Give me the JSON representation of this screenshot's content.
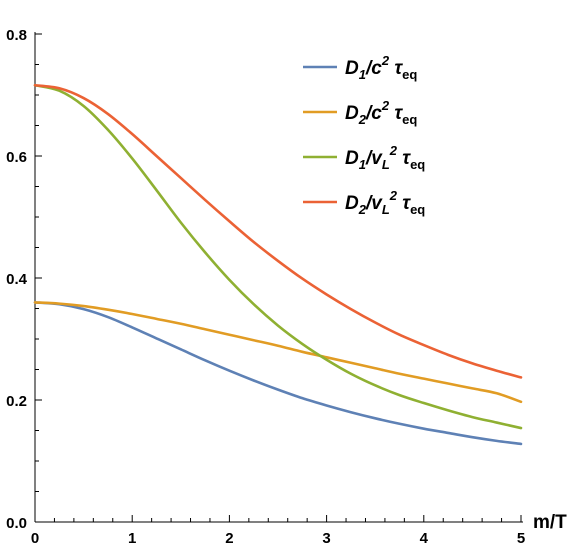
{
  "chart_data": {
    "type": "line",
    "xlabel": "m/T",
    "ylabel": "",
    "xlim": [
      0,
      5
    ],
    "ylim": [
      0,
      0.8
    ],
    "x_ticks": [
      0,
      1,
      2,
      3,
      4,
      5
    ],
    "y_ticks": [
      0.0,
      0.2,
      0.4,
      0.6,
      0.8
    ],
    "x_tick_labels": [
      "0",
      "1",
      "2",
      "3",
      "4",
      "5"
    ],
    "y_tick_labels": [
      "0.0",
      "0.2",
      "0.4",
      "0.6",
      "0.8"
    ],
    "grid": false,
    "legend_position": "top-right",
    "x": [
      0,
      0.25,
      0.5,
      0.75,
      1.0,
      1.25,
      1.5,
      1.75,
      2.0,
      2.25,
      2.5,
      2.75,
      3.0,
      3.25,
      3.5,
      3.75,
      4.0,
      4.25,
      4.5,
      4.75,
      5.0
    ],
    "series": [
      {
        "name": "D1/c2 τeq",
        "legend": {
          "main": "D",
          "sub": "1",
          "mid": "/c",
          "sup": "2",
          "tail": " τ",
          "tail_sub": "eq"
        },
        "color": "#5e81b5",
        "values": [
          0.36,
          0.357,
          0.349,
          0.336,
          0.319,
          0.301,
          0.283,
          0.265,
          0.248,
          0.232,
          0.217,
          0.203,
          0.191,
          0.18,
          0.17,
          0.161,
          0.153,
          0.146,
          0.139,
          0.133,
          0.128
        ]
      },
      {
        "name": "D2/c2 τeq",
        "legend": {
          "main": "D",
          "sub": "2",
          "mid": "/c",
          "sup": "2",
          "tail": " τ",
          "tail_sub": "eq"
        },
        "color": "#e19c24",
        "values": [
          0.36,
          0.358,
          0.354,
          0.348,
          0.341,
          0.333,
          0.325,
          0.316,
          0.307,
          0.298,
          0.289,
          0.279,
          0.27,
          0.261,
          0.252,
          0.243,
          0.235,
          0.227,
          0.219,
          0.211,
          0.197
        ]
      },
      {
        "name": "D1/vL2 τeq",
        "legend": {
          "main": "D",
          "sub": "1",
          "mid": "/v",
          "midsub": "L",
          "sup": "2",
          "tail": " τ",
          "tail_sub": "eq"
        },
        "color": "#8fb032",
        "values": [
          0.716,
          0.707,
          0.682,
          0.643,
          0.596,
          0.544,
          0.491,
          0.442,
          0.397,
          0.357,
          0.322,
          0.292,
          0.266,
          0.243,
          0.224,
          0.208,
          0.195,
          0.183,
          0.172,
          0.163,
          0.154
        ]
      },
      {
        "name": "D2/vL2 τeq",
        "legend": {
          "main": "D",
          "sub": "2",
          "mid": "/v",
          "midsub": "L",
          "sup": "2",
          "tail": " τ",
          "tail_sub": "eq"
        },
        "color": "#eb6235",
        "values": [
          0.716,
          0.711,
          0.695,
          0.669,
          0.636,
          0.6,
          0.564,
          0.528,
          0.493,
          0.459,
          0.428,
          0.399,
          0.373,
          0.349,
          0.327,
          0.307,
          0.29,
          0.274,
          0.26,
          0.248,
          0.237
        ]
      }
    ]
  }
}
